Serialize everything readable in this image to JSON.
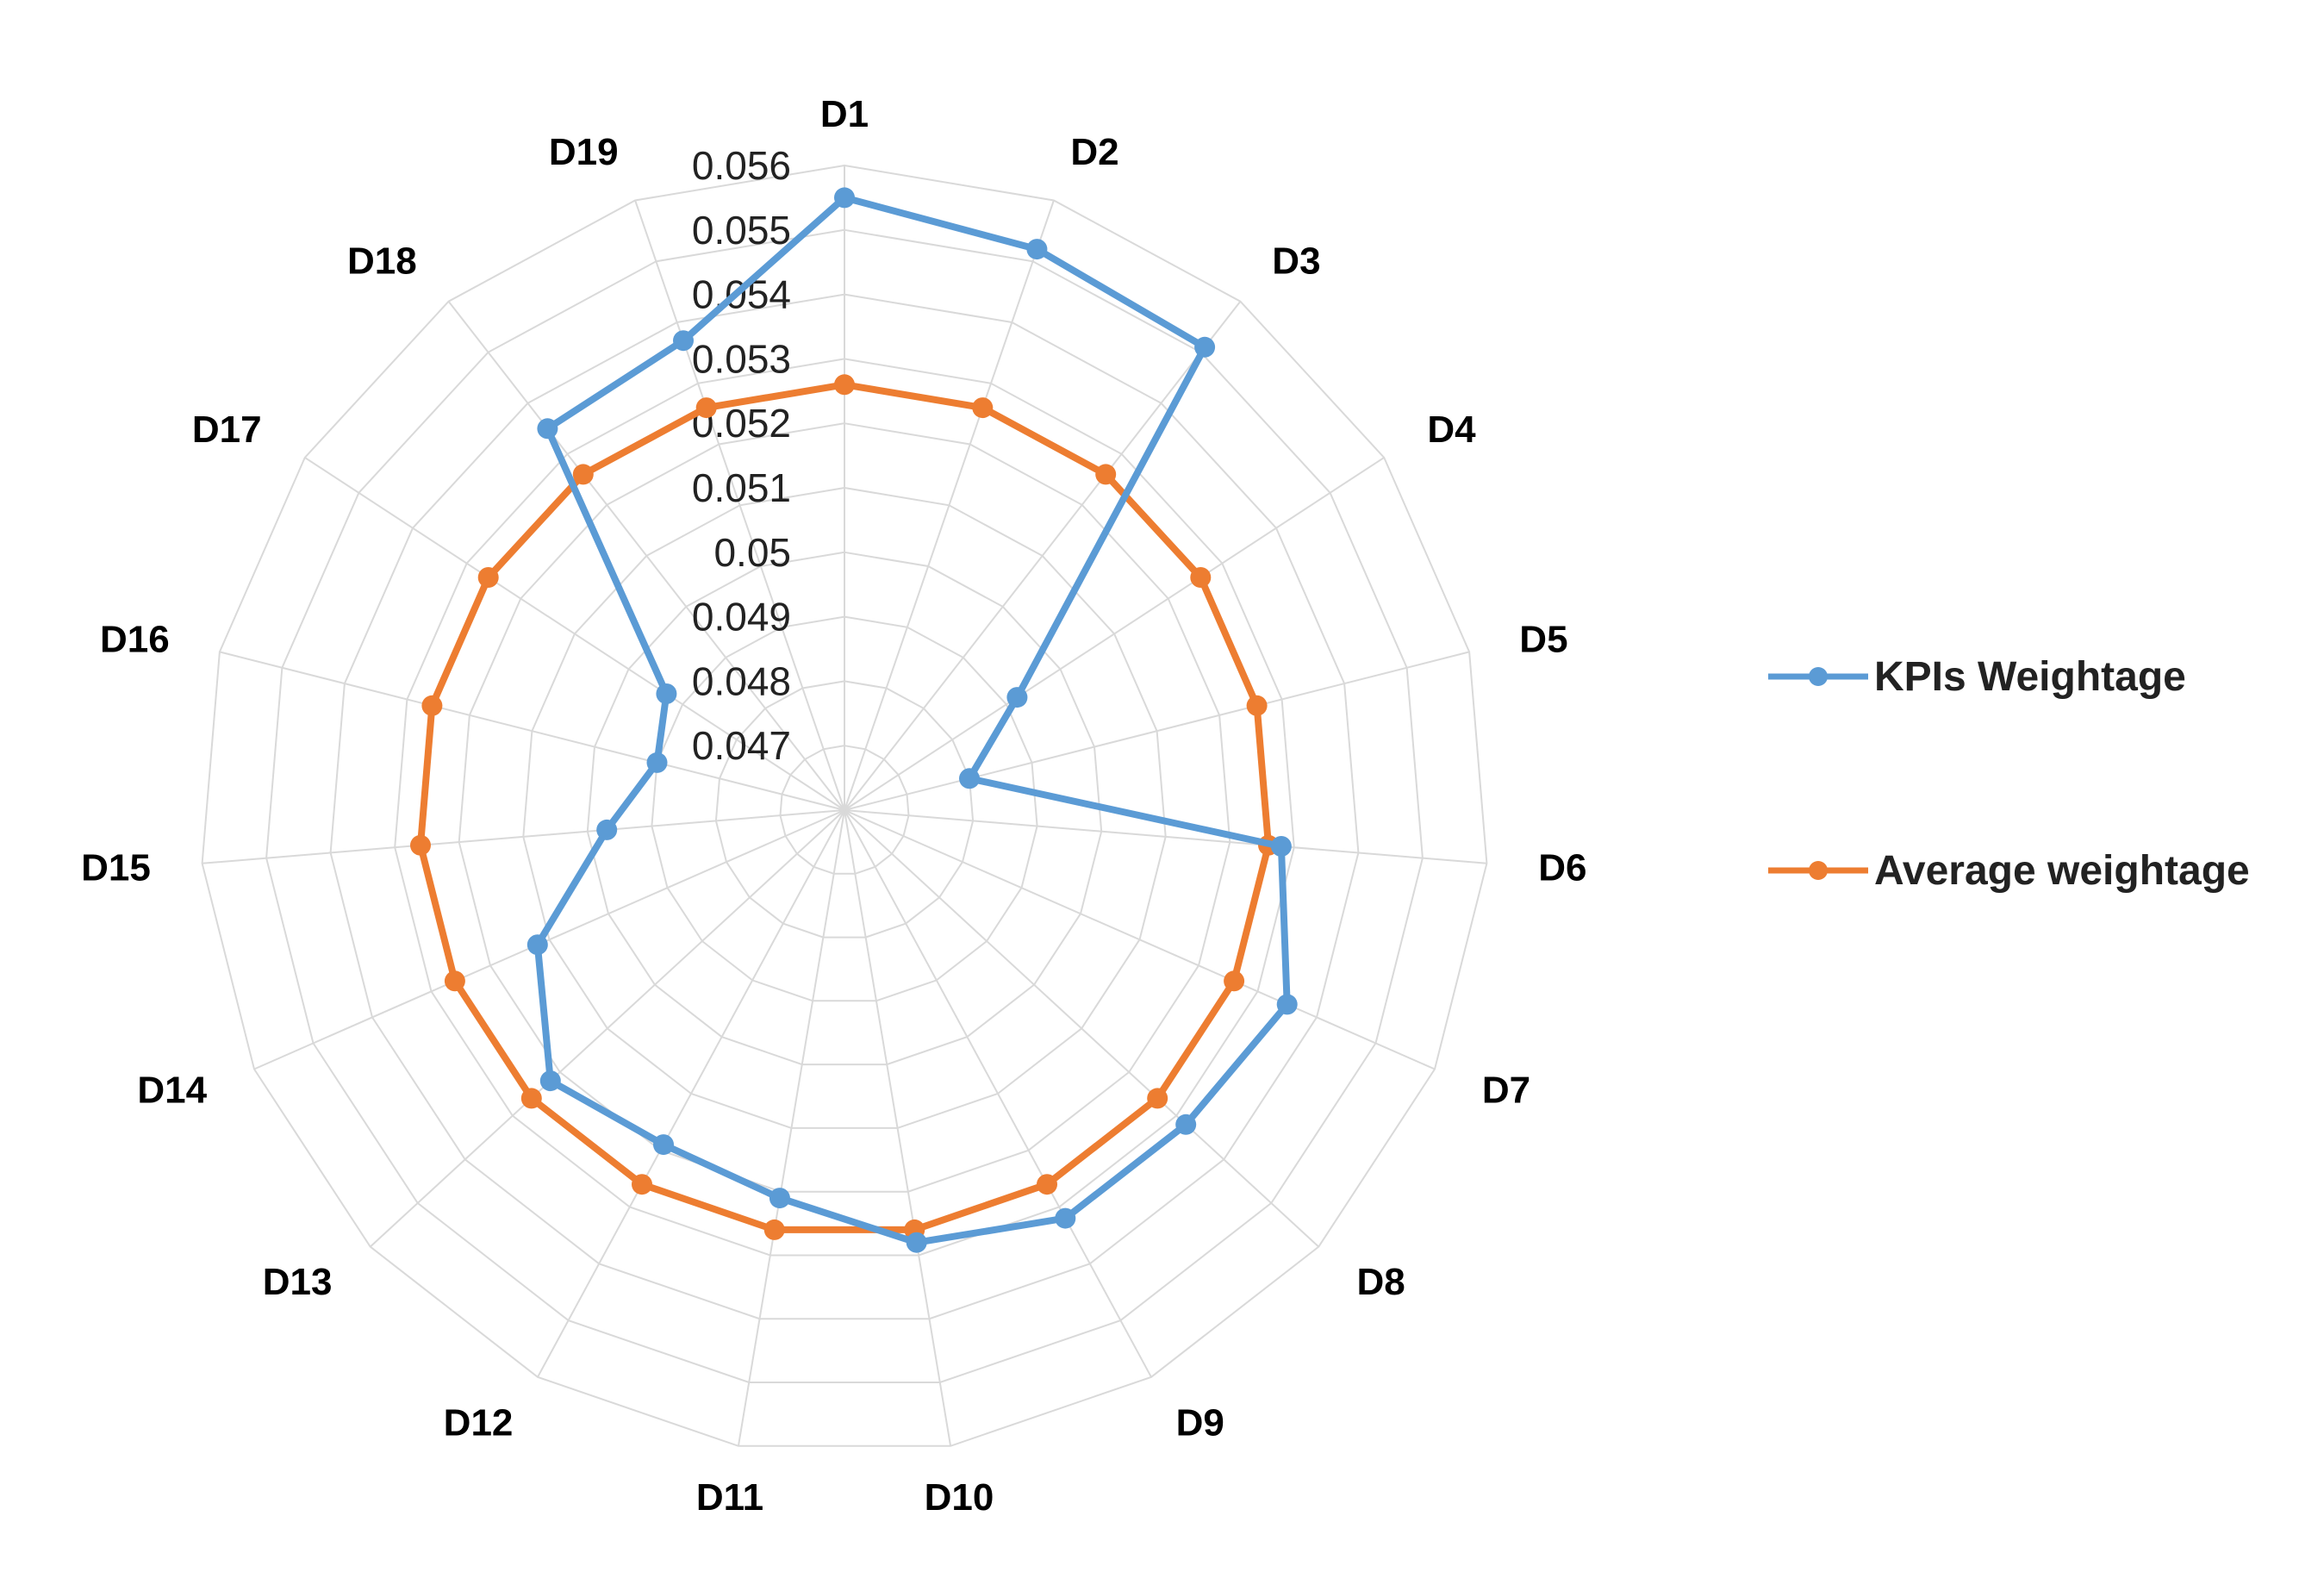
{
  "chart_data": {
    "type": "radar",
    "title": "",
    "categories": [
      "D1",
      "D2",
      "D3",
      "D4",
      "D5",
      "D6",
      "D7",
      "D8",
      "D9",
      "D10",
      "D11",
      "D12",
      "D13",
      "D14",
      "D15",
      "D16",
      "D17",
      "D18",
      "D19"
    ],
    "rlim": [
      0.046,
      0.056
    ],
    "ticks": [
      "0.047",
      "0.048",
      "0.049",
      "0.05",
      "0.051",
      "0.052",
      "0.053",
      "0.054",
      "0.055",
      "0.056"
    ],
    "tick_values": [
      0.047,
      0.048,
      0.049,
      0.05,
      0.051,
      0.052,
      0.053,
      0.054,
      0.055,
      0.056
    ],
    "grid": true,
    "legend_position": "right",
    "series": [
      {
        "name": "KPIs Weightage",
        "color": "#5b9bd5",
        "values": [
          0.0555,
          0.0552,
          0.0551,
          0.0492,
          0.048,
          0.0528,
          0.0535,
          0.0532,
          0.0532,
          0.0528,
          0.0521,
          0.0519,
          0.0522,
          0.0512,
          0.0497,
          0.049,
          0.0493,
          0.0535,
          0.0537
        ]
      },
      {
        "name": "Average weightage",
        "color": "#ed7d31",
        "values": [
          0.0526,
          0.0526,
          0.0526,
          0.0526,
          0.0526,
          0.0526,
          0.0526,
          0.0526,
          0.0526,
          0.0526,
          0.0526,
          0.0526,
          0.0526,
          0.0526,
          0.0526,
          0.0526,
          0.0526,
          0.0526,
          0.0526
        ]
      }
    ]
  }
}
